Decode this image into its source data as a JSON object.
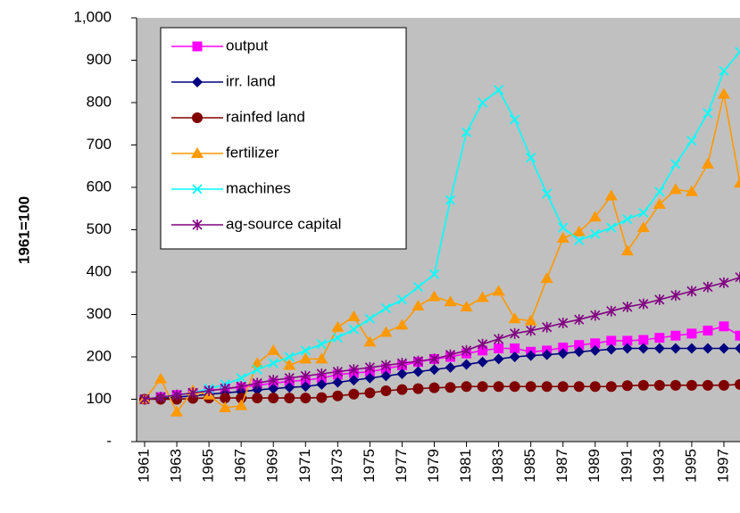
{
  "chart_data": {
    "type": "line",
    "ylabel": "1961=100",
    "x": [
      1961,
      1962,
      1963,
      1964,
      1965,
      1966,
      1967,
      1968,
      1969,
      1970,
      1971,
      1972,
      1973,
      1974,
      1975,
      1976,
      1977,
      1978,
      1979,
      1980,
      1981,
      1982,
      1983,
      1984,
      1985,
      1986,
      1987,
      1988,
      1989,
      1990,
      1991,
      1992,
      1993,
      1994,
      1995,
      1996,
      1997,
      1998
    ],
    "xlim": [
      1960.5,
      1998
    ],
    "xticks": [
      1961,
      1963,
      1965,
      1967,
      1969,
      1971,
      1973,
      1975,
      1977,
      1979,
      1981,
      1983,
      1985,
      1987,
      1989,
      1991,
      1993,
      1995,
      1997
    ],
    "ylim": [
      0,
      1000
    ],
    "yticks": [
      {
        "value": 0,
        "label": "-"
      },
      100,
      200,
      300,
      400,
      500,
      600,
      700,
      800,
      900,
      {
        "value": 1000,
        "label": "1,000"
      }
    ],
    "grid": false,
    "legend": "upper left",
    "series": [
      {
        "name": "output",
        "color": "#ff00ff",
        "marker": "square",
        "values": [
          100,
          105,
          110,
          115,
          120,
          125,
          128,
          133,
          138,
          142,
          145,
          150,
          158,
          162,
          165,
          172,
          180,
          188,
          195,
          200,
          208,
          215,
          220,
          220,
          212,
          215,
          222,
          228,
          232,
          238,
          238,
          240,
          245,
          250,
          255,
          262,
          272,
          250
        ]
      },
      {
        "name": "irr. land",
        "color": "#000080",
        "marker": "diamond",
        "values": [
          100,
          102,
          105,
          108,
          112,
          115,
          118,
          122,
          125,
          128,
          130,
          135,
          140,
          145,
          150,
          155,
          160,
          165,
          170,
          175,
          182,
          188,
          195,
          200,
          203,
          205,
          208,
          212,
          215,
          218,
          220,
          220,
          220,
          220,
          220,
          220,
          220,
          220
        ]
      },
      {
        "name": "rainfed land",
        "color": "#800000",
        "marker": "circle",
        "values": [
          100,
          100,
          100,
          102,
          103,
          103,
          103,
          103,
          103,
          103,
          103,
          104,
          108,
          112,
          115,
          120,
          123,
          125,
          127,
          128,
          130,
          130,
          130,
          130,
          130,
          130,
          130,
          130,
          130,
          130,
          132,
          133,
          133,
          133,
          133,
          133,
          133,
          135
        ]
      },
      {
        "name": "fertilizer",
        "color": "#ff9900",
        "marker": "triangle",
        "values": [
          100,
          148,
          70,
          120,
          110,
          80,
          85,
          185,
          215,
          180,
          195,
          195,
          270,
          295,
          235,
          258,
          275,
          320,
          342,
          330,
          318,
          340,
          355,
          290,
          285,
          385,
          480,
          495,
          530,
          580,
          450,
          505,
          560,
          595,
          590,
          655,
          820,
          610
        ]
      },
      {
        "name": "machines",
        "color": "#00ffff",
        "marker": "x",
        "values": [
          100,
          105,
          110,
          115,
          125,
          135,
          150,
          170,
          185,
          200,
          215,
          230,
          245,
          265,
          290,
          315,
          335,
          365,
          395,
          570,
          730,
          800,
          830,
          760,
          670,
          585,
          505,
          475,
          490,
          505,
          525,
          540,
          590,
          655,
          710,
          775,
          875,
          920
        ]
      },
      {
        "name": "ag-source capital",
        "color": "#800080",
        "marker": "star",
        "values": [
          100,
          105,
          110,
          115,
          120,
          125,
          130,
          138,
          145,
          150,
          155,
          160,
          165,
          170,
          175,
          180,
          185,
          190,
          195,
          205,
          215,
          230,
          242,
          255,
          262,
          270,
          280,
          288,
          298,
          308,
          318,
          325,
          335,
          345,
          355,
          365,
          375,
          388
        ]
      }
    ]
  }
}
